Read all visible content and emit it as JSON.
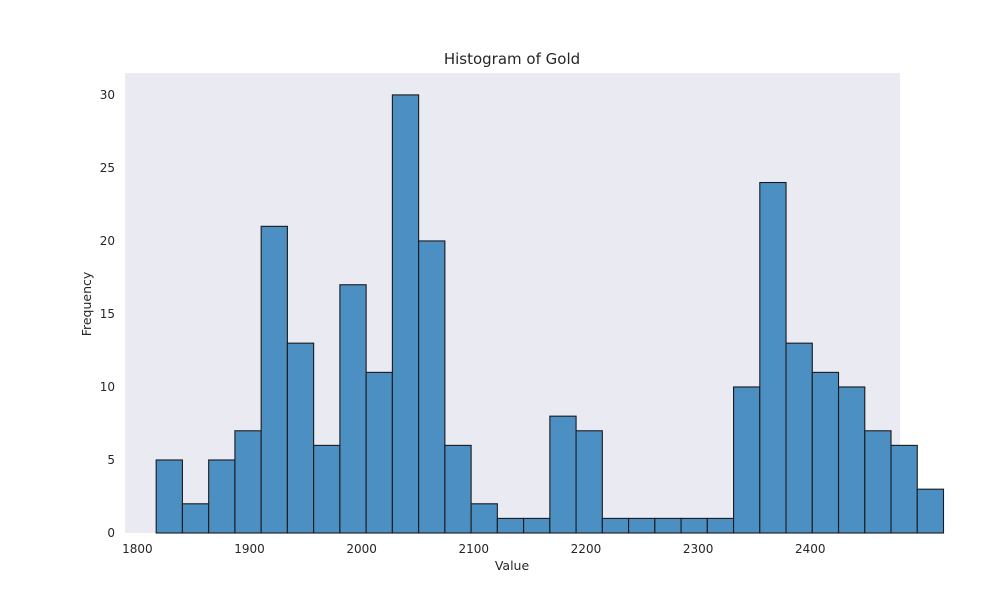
{
  "chart_data": {
    "type": "bar",
    "title": "Histogram of Gold",
    "xlabel": "Value",
    "ylabel": "Frequency",
    "bin_start": 1816.8,
    "bin_width": 23.4,
    "counts": [
      5,
      2,
      5,
      7,
      21,
      13,
      6,
      17,
      11,
      30,
      20,
      6,
      2,
      1,
      1,
      8,
      7,
      1,
      1,
      1,
      1,
      1,
      10,
      24,
      13,
      11,
      10,
      7,
      6,
      3
    ],
    "xlim": [
      1789,
      2480
    ],
    "ylim": [
      0,
      31.5
    ],
    "xticks": [
      1800,
      1900,
      2000,
      2100,
      2200,
      2300,
      2400
    ],
    "yticks": [
      0,
      5,
      10,
      15,
      20,
      25,
      30
    ],
    "grid": false,
    "bar_color": "#4c8fc3",
    "edge_color": "#1a1a1a",
    "plot_background": "#eaeaf2"
  }
}
